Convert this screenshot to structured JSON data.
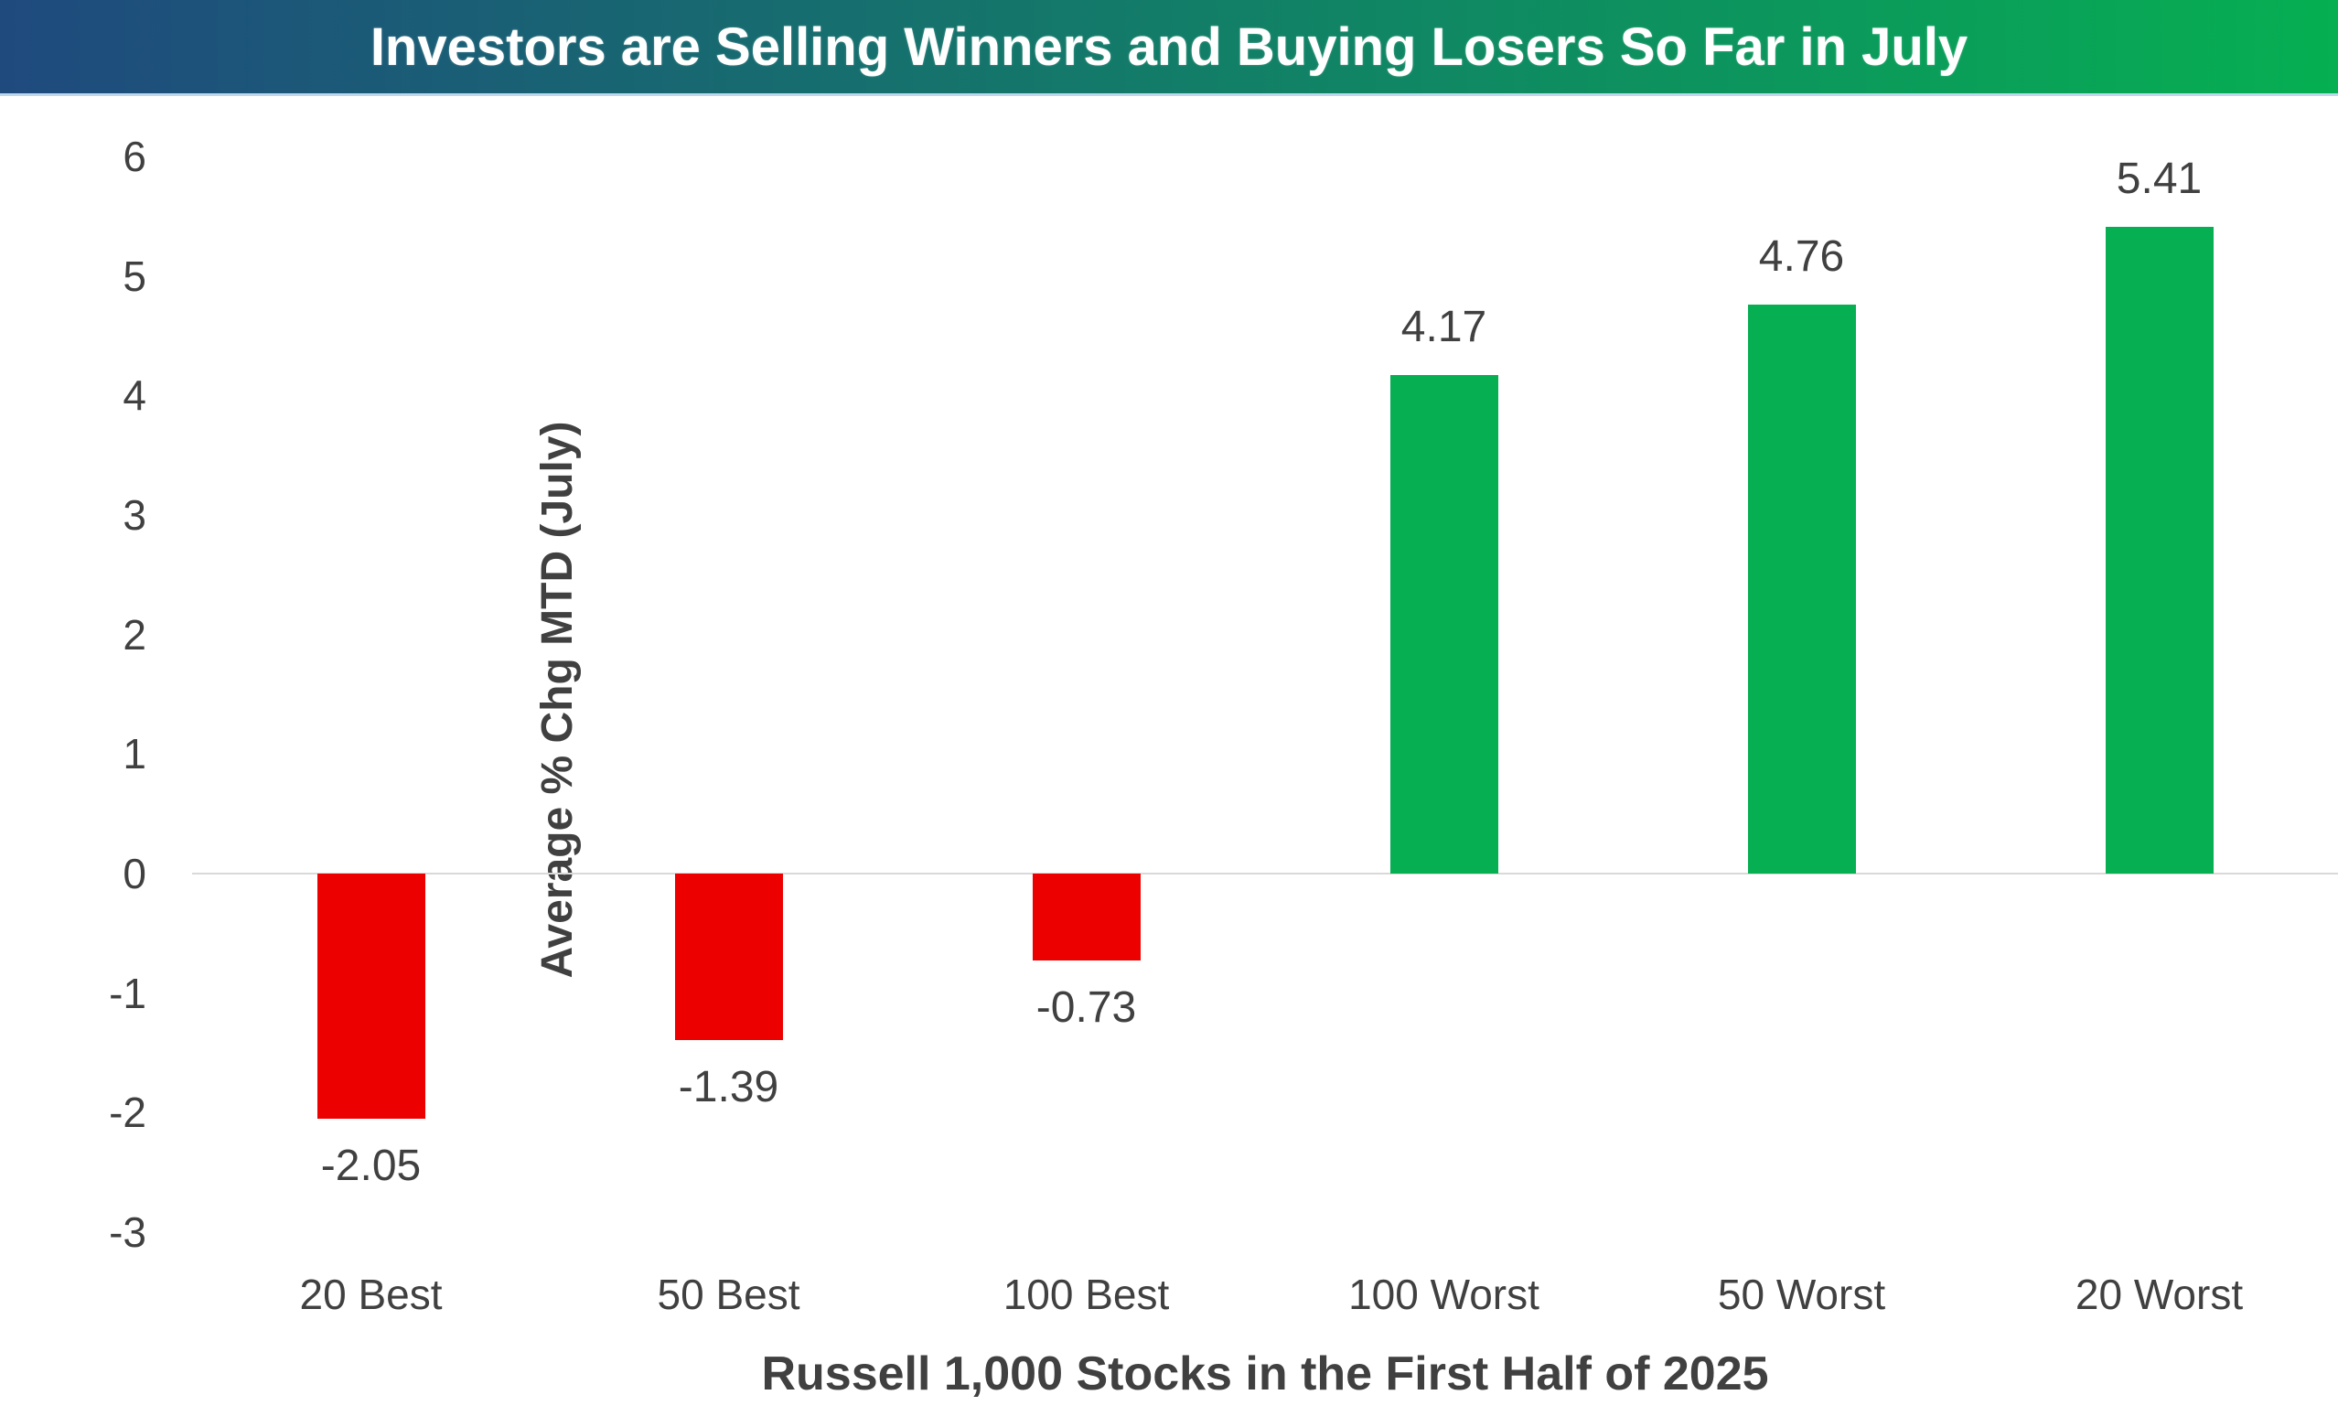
{
  "header": {
    "title": "Investors are Selling Winners and Buying Losers So Far in July"
  },
  "chart_data": {
    "type": "bar",
    "title": "Investors are Selling Winners and Buying Losers So Far in July",
    "categories": [
      "20 Best",
      "50 Best",
      "100 Best",
      "100 Worst",
      "50 Worst",
      "20 Worst"
    ],
    "values": [
      -2.05,
      -1.39,
      -0.73,
      4.17,
      4.76,
      5.41
    ],
    "data_labels": [
      "-2.05",
      "-1.39",
      "-0.73",
      "4.17",
      "4.76",
      "5.41"
    ],
    "xlabel": "Russell 1,000 Stocks in the First Half of 2025",
    "ylabel": "Average % Chg MTD (July)",
    "ylim": [
      -3,
      6
    ],
    "yticks": [
      6,
      5,
      4,
      3,
      2,
      1,
      0,
      -1,
      -2,
      -3
    ],
    "grid": false,
    "legend_position": "none",
    "colors": {
      "positive_bar": "#06af52",
      "negative_bar": "#ec0000",
      "banner_gradient_left": "#1f4a7e",
      "banner_gradient_right": "#06af52",
      "banner_text": "#ffffff",
      "axis_label": "#404040",
      "zero_line": "#d9d9d9"
    }
  }
}
